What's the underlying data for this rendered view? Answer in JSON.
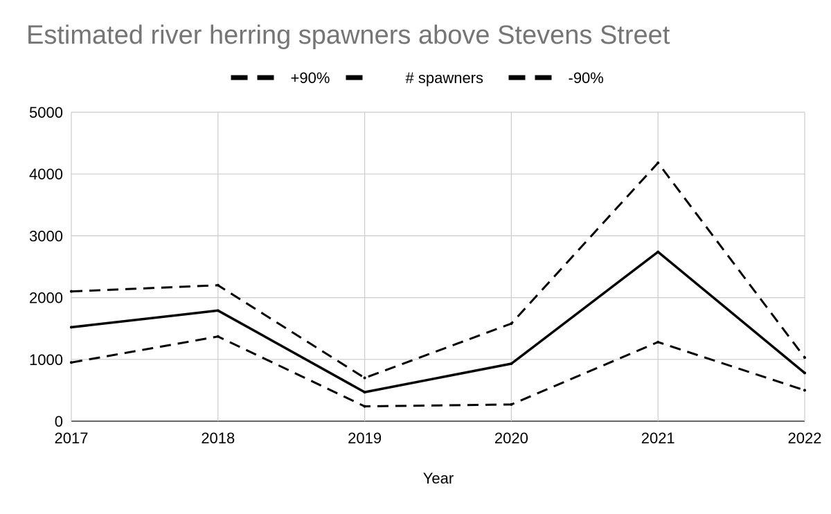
{
  "chart_data": {
    "type": "line",
    "title": "Estimated river herring spawners above Stevens Street",
    "xlabel": "Year",
    "ylabel": "",
    "x": [
      "2017",
      "2018",
      "2019",
      "2020",
      "2021",
      "2022"
    ],
    "ylim": [
      0,
      5000
    ],
    "yticks": [
      0,
      1000,
      2000,
      3000,
      4000,
      5000
    ],
    "grid": true,
    "legend_position": "top",
    "series": [
      {
        "name": "+90%",
        "values": [
          2100,
          2200,
          700,
          1580,
          4180,
          1030
        ],
        "style": "dashed",
        "color": "#000000"
      },
      {
        "name": "# spawners",
        "values": [
          1520,
          1790,
          470,
          930,
          2740,
          780
        ],
        "style": "solid",
        "color": "#000000"
      },
      {
        "name": "-90%",
        "values": [
          950,
          1370,
          240,
          270,
          1280,
          500
        ],
        "style": "dashed",
        "color": "#000000"
      }
    ]
  }
}
